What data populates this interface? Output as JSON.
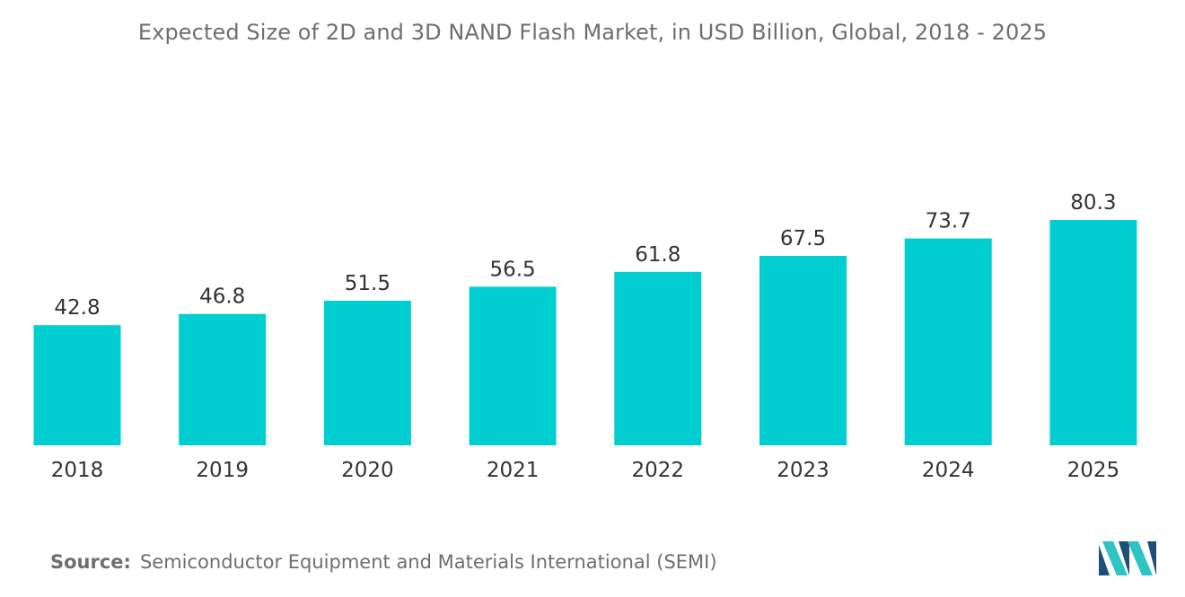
{
  "chart_data": {
    "type": "bar",
    "title": "Expected Size of 2D and 3D NAND Flash Market, in USD Billion, Global, 2018 - 2025",
    "categories": [
      "2018",
      "2019",
      "2020",
      "2021",
      "2022",
      "2023",
      "2024",
      "2025"
    ],
    "values": [
      42.8,
      46.8,
      51.5,
      56.5,
      61.8,
      67.5,
      73.7,
      80.3
    ],
    "value_labels": [
      "42.8",
      "46.8",
      "51.5",
      "56.5",
      "61.8",
      "67.5",
      "73.7",
      "80.3"
    ],
    "xlabel": "",
    "ylabel": "",
    "ylim": [
      0,
      80.3
    ],
    "grid": false,
    "legend": "none",
    "bar_color": "#00ced1"
  },
  "footer": {
    "source_label": "Source:",
    "source_text": "Semiconductor Equipment and Materials International (SEMI)"
  },
  "colors": {
    "bar": "#00ced1",
    "text": "#6e6e6e",
    "value_text": "#333333",
    "logo_dark": "#1f4e79",
    "logo_light": "#2ec4c6"
  },
  "logo": {
    "icon": "mordor-intelligence-logo-icon"
  }
}
